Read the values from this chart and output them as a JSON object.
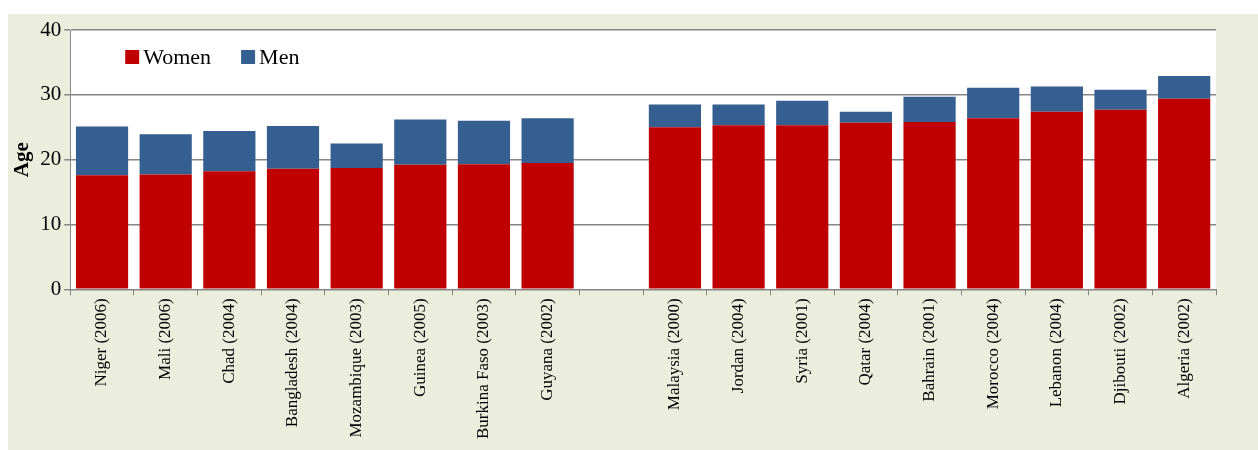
{
  "chart_data": {
    "type": "bar",
    "stacked": true,
    "ylabel": "Age",
    "categories": [
      "Niger (2006)",
      "Mali (2006)",
      "Chad (2004)",
      "Bangladesh (2004)",
      "Mozambique (2003)",
      "Guinea (2005)",
      "Burkina Faso (2003)",
      "Guyana (2002)",
      null,
      "Malaysia (2000)",
      "Jordan (2004)",
      "Syria (2001)",
      "Qatar (2004)",
      "Bahrain (2001)",
      "Morocco (2004)",
      "Lebanon (2004)",
      "Djibouti (2002)",
      "Algeria (2002)"
    ],
    "series": [
      {
        "name": "Women",
        "color": "#c00000",
        "values": [
          17.6,
          17.7,
          18.2,
          18.6,
          18.7,
          19.2,
          19.3,
          19.5,
          null,
          25.0,
          25.3,
          25.3,
          25.7,
          25.8,
          26.4,
          27.4,
          27.7,
          29.4
        ]
      },
      {
        "name": "Men",
        "color": "#365f91",
        "values": [
          7.5,
          6.2,
          6.2,
          6.6,
          3.8,
          7.0,
          6.7,
          6.9,
          null,
          3.5,
          3.2,
          3.8,
          1.7,
          3.9,
          4.7,
          3.9,
          3.1,
          3.5
        ]
      }
    ],
    "ylim": [
      0,
      40
    ],
    "yticks": [
      0,
      10,
      20,
      30,
      40
    ],
    "grid": "y",
    "legend": "top left"
  }
}
